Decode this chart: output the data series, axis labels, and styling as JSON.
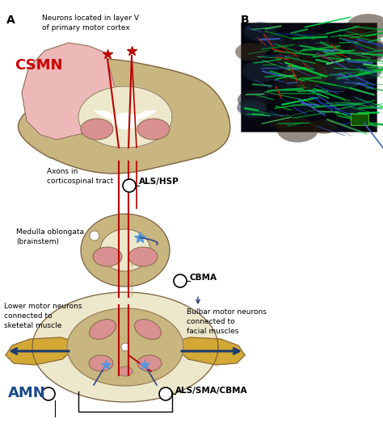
{
  "title_A": "A",
  "title_B": "B",
  "label_CSMN": "CSMN",
  "label_AMN": "AMN",
  "label_ALSHSP": "ALS/HSP",
  "label_CBMA": "CBMA",
  "label_ALSSMACBMA": "ALS/SMA/CBMA",
  "label_neurons": "Neurons located in layer V\nof primary motor cortex",
  "label_axons": "Axons in\ncorticospinal tract",
  "label_medulla": "Medulla oblongata\n(brainstem)",
  "label_lower": "Lower motor neurons\nconnected to\nsketetal muscle",
  "label_bulbar": "Bulbar motor neurons\nconnected to\nfacial muscles",
  "color_tan": "#C8B580",
  "color_tan2": "#BEA86A",
  "color_pink": "#D99090",
  "color_lightpink": "#EDB8B8",
  "color_lightyellow": "#EDE8CC",
  "color_white": "#FFFFFF",
  "color_red": "#BB0000",
  "color_blue": "#2255AA",
  "color_darkblue": "#1a3a6e",
  "color_gold": "#D4A835",
  "color_CSMN": "#CC0000",
  "color_AMN": "#1a4a8a",
  "color_outline": "#7A6040",
  "bg_color": "#FFFFFF",
  "figsize": [
    4.74,
    5.29
  ],
  "dpi": 100
}
